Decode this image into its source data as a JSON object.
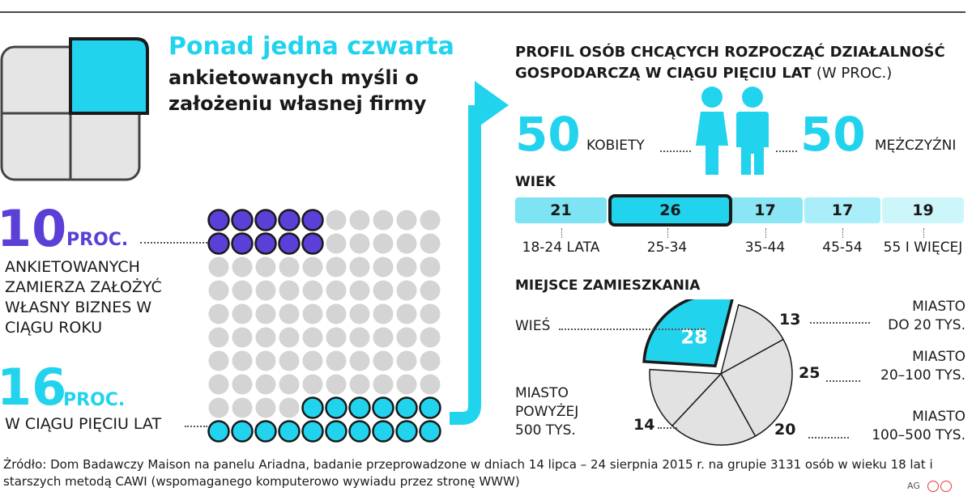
{
  "headline": {
    "accent": "Ponad jedna czwarta",
    "rest": "ankietowanych myśli o założeniu własnej firmy"
  },
  "stat_year": {
    "number": "10",
    "unit": "PROC.",
    "text": "ANKIETOWANYCH ZAMIERZA ZAŁOŻYĆ WŁASNY BIZNES W CIĄGU ROKU"
  },
  "stat_five": {
    "number": "16",
    "unit": "PROC.",
    "text": "W CIĄGU PIĘCIU LAT"
  },
  "profile": {
    "title": "PROFIL OSÓB CHCĄCYCH ROZPOCZĄĆ DZIAŁALNOŚĆ GOSPODARCZĄ W CIĄGU PIĘCIU LAT",
    "title_note": "(W PROC.)",
    "women_value": "50",
    "women_label": "KOBIETY",
    "men_value": "50",
    "men_label": "MĘŻCZYŹNI"
  },
  "age_heading": "WIEK",
  "residence_heading": "MIEJSCE ZAMIESZKANIA",
  "source": "Źródło: Dom Badawczy Maison na panelu Ariadna, badanie przeprowadzone w dniach 14 lipca – 24 sierpnia 2015 r. na grupie 3131 osób w wieku 18 lat i starszych metodą CAWI (wspomaganego komputerowo wywiadu przez stronę WWW)",
  "credit": "AG",
  "colors": {
    "cyan": "#22d3ee",
    "purple": "#5b3fd6",
    "grey": "#d4d4d4",
    "dark": "#1a1a1a"
  },
  "chart_data": [
    {
      "type": "bar",
      "title": "WIEK",
      "categories": [
        "18-24 LATA",
        "25-34",
        "35-44",
        "45-54",
        "55 I WIĘCEJ"
      ],
      "values": [
        21,
        26,
        17,
        17,
        19
      ],
      "highlighted": "25-34"
    },
    {
      "type": "pie",
      "title": "MIEJSCE ZAMIESZKANIA",
      "labels": [
        "WIEŚ",
        "MIASTO DO 20 TYS.",
        "MIASTO 20–100 TYS.",
        "MIASTO 100–500 TYS.",
        "MIASTO POWYŻEJ 500 TYS."
      ],
      "values": [
        28,
        13,
        25,
        20,
        14
      ],
      "highlighted": "WIEŚ"
    },
    {
      "type": "dot-matrix",
      "total": 100,
      "series": [
        {
          "name": "10 PROC.",
          "value": 10,
          "color": "#5b3fd6"
        },
        {
          "name": "16 PROC.",
          "value": 16,
          "color": "#22d3ee"
        }
      ]
    }
  ]
}
